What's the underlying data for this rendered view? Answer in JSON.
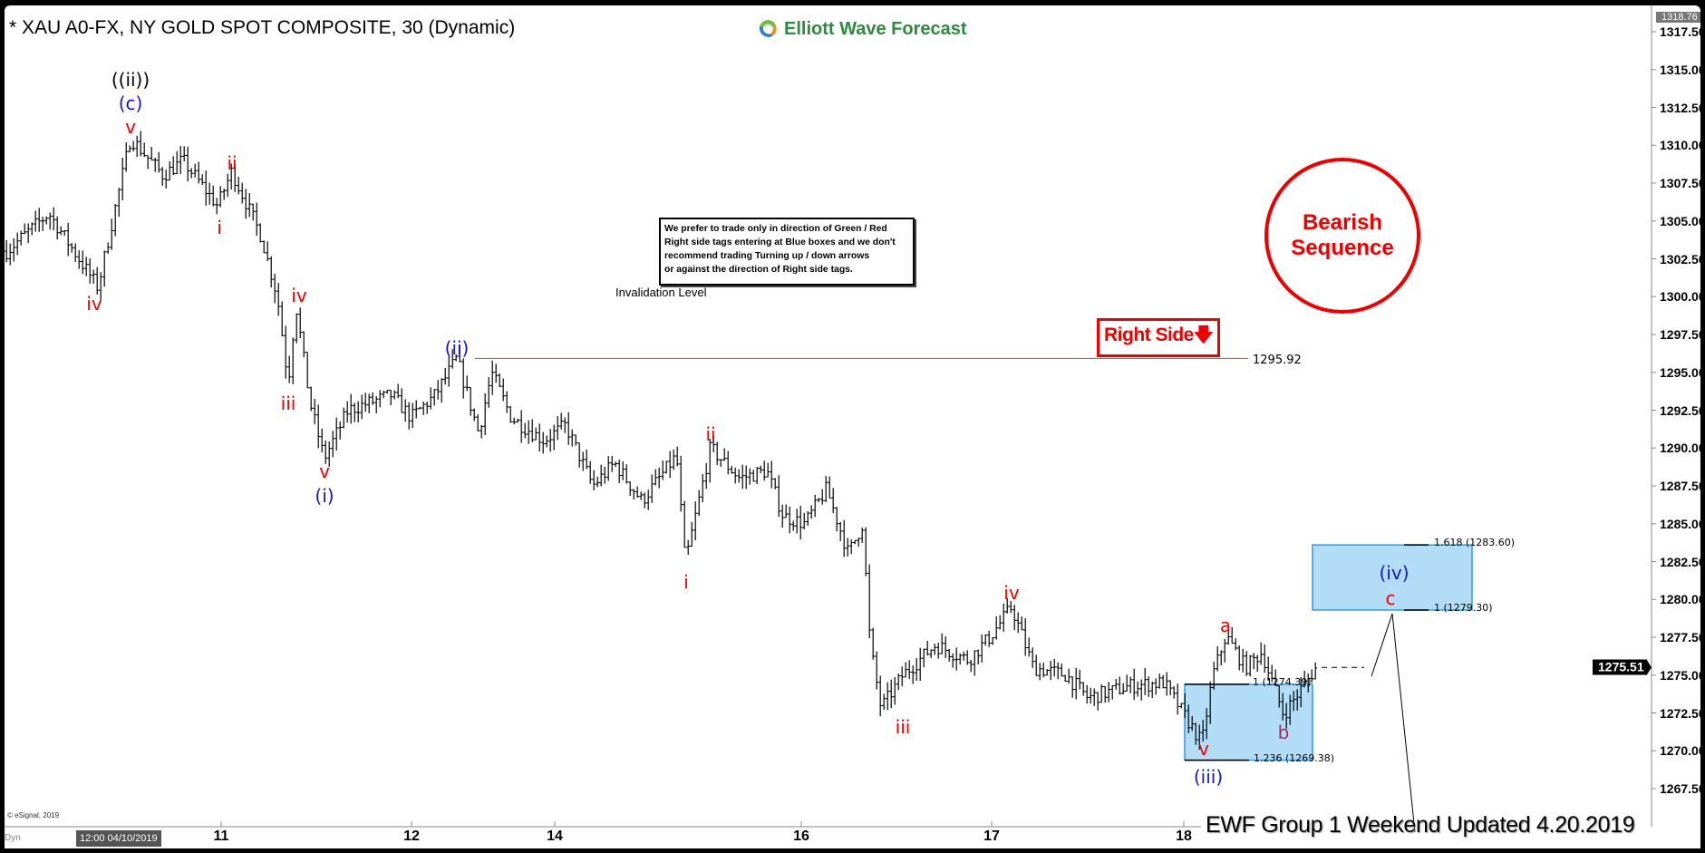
{
  "header": {
    "title": "* XAU A0-FX, NY GOLD SPOT COMPOSITE, 30 (Dynamic)",
    "logo_text": "Elliott Wave Forecast"
  },
  "note": {
    "lines": [
      "We prefer to trade only in direction of Green / Red",
      "Right side tags entering at Blue boxes and we don't",
      "recommend trading Turning up / down arrows",
      "or against the direction of Right side tags."
    ]
  },
  "badges": {
    "sequence_line1": "Bearish",
    "sequence_line2": "Sequence",
    "right_side": "Right Side",
    "right_side_arrow": "arrow-down-icon"
  },
  "footer": {
    "copyright": "© eSignal, 2019",
    "mode": "Dyn",
    "cursor_time": "12:00 04/10/2019",
    "update_text": "EWF Group 1  Weekend  Updated 4.20.2019"
  },
  "colors": {
    "bearish": "#e00000",
    "box_fill": "#b3dcf7",
    "box_border": "#3399dd",
    "wave_blue": "#1515d0",
    "wave_red": "#e00000"
  },
  "chart_data": {
    "type": "ohlc",
    "title": "* XAU A0-FX, NY GOLD SPOT COMPOSITE, 30 (Dynamic)",
    "interval": "30",
    "y_axis": {
      "position": "right",
      "ylim": [
        1265.5,
        1318.76
      ],
      "ticks": [
        "1317.50",
        "1315.00",
        "1312.50",
        "1310.00",
        "1307.50",
        "1305.00",
        "1302.50",
        "1300.00",
        "1297.50",
        "1295.00",
        "1292.50",
        "1290.00",
        "1287.50",
        "1285.00",
        "1282.50",
        "1280.00",
        "1277.50",
        "1275.00",
        "1272.50",
        "1270.00",
        "1267.50"
      ]
    },
    "x_axis": {
      "ticks": [
        "11",
        "12",
        "14",
        "16",
        "17",
        "18"
      ]
    },
    "last_price": "1275.51",
    "high_marker": "1318.76",
    "swing_prices": [
      1303,
      1305.5,
      1300.6,
      1310.5,
      1308,
      1309,
      1306,
      1308.3,
      1304,
      1300,
      1294.3,
      1299.5,
      1293,
      1289.3,
      1292.5,
      1293.5,
      1292,
      1293.5,
      1295.92,
      1291,
      1295,
      1292,
      1290.5,
      1291.5,
      1287.5,
      1289,
      1286.5,
      1289.5,
      1282.4,
      1290,
      1288,
      1288.5,
      1285.5,
      1285,
      1287.3,
      1283,
      1285,
      1277,
      1272.8,
      1275,
      1277,
      1276,
      1277.5,
      1279.5,
      1275.5,
      1275,
      1273.5,
      1274.3,
      1274.5,
      1270.5,
      1275,
      1277.6,
      1275.5,
      1276.5,
      1272.4,
      1275.51
    ],
    "invalidation": {
      "label": "Invalidation Level",
      "price": "1295.92"
    },
    "wave_labels": [
      {
        "text": "((ii))",
        "color": "black"
      },
      {
        "text": "(c)",
        "color": "blue"
      },
      {
        "text": "v",
        "color": "red"
      },
      {
        "text": "iv",
        "color": "red"
      },
      {
        "text": "i",
        "color": "red"
      },
      {
        "text": "ii",
        "color": "red"
      },
      {
        "text": "iii",
        "color": "red"
      },
      {
        "text": "iv",
        "color": "red"
      },
      {
        "text": "v",
        "color": "red"
      },
      {
        "text": "(i)",
        "color": "blue"
      },
      {
        "text": "(ii)",
        "color": "blue"
      },
      {
        "text": "i",
        "color": "red"
      },
      {
        "text": "ii",
        "color": "red"
      },
      {
        "text": "iii",
        "color": "red"
      },
      {
        "text": "iv",
        "color": "red"
      },
      {
        "text": "v",
        "color": "red"
      },
      {
        "text": "(iii)",
        "color": "blue"
      },
      {
        "text": "a",
        "color": "red"
      },
      {
        "text": "b",
        "color": "purple"
      },
      {
        "text": "(iv)",
        "color": "blue"
      },
      {
        "text": "c",
        "color": "red"
      }
    ],
    "blue_boxes": [
      {
        "from": 1269.38,
        "to": 1274.39,
        "labels": [
          "1 (1274.39)",
          "1.236 (1269.38)"
        ]
      },
      {
        "from": 1279.3,
        "to": 1283.6,
        "labels": [
          "1.618 (1283.60)",
          "1 (1279.30)"
        ]
      }
    ]
  }
}
